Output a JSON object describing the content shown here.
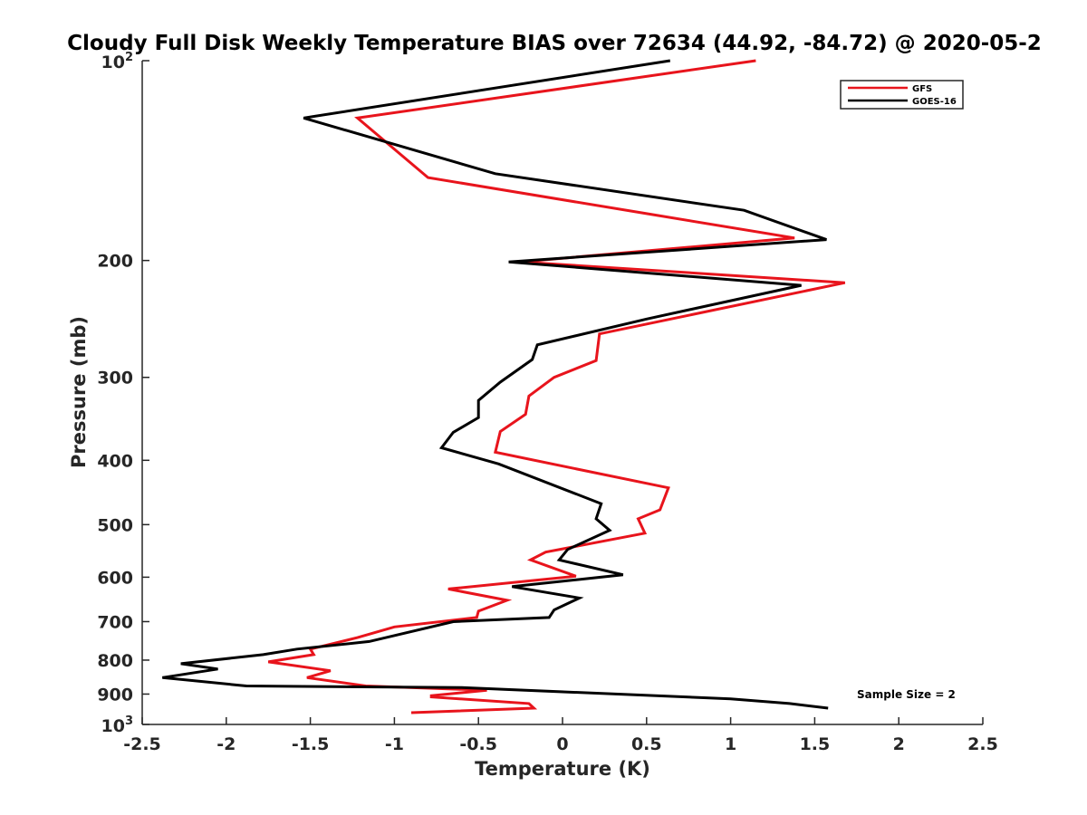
{
  "chart_data": {
    "type": "line",
    "title": "Cloudy Full Disk Weekly Temperature BIAS over 72634 (44.92, -84.72) @ 2020-05-2",
    "xlabel": "Temperature (K)",
    "ylabel": "Pressure (mb)",
    "xlim": [
      -2.5,
      2.5
    ],
    "ylim": [
      100,
      1000
    ],
    "y_scale": "log",
    "y_reversed": true,
    "grid": false,
    "legend_position": "top-right",
    "x_ticks": [
      -2.5,
      -2,
      -1.5,
      -1,
      -0.5,
      0,
      0.5,
      1,
      1.5,
      2,
      2.5
    ],
    "x_tick_labels": [
      "-2.5",
      "-2",
      "-1.5",
      "-1",
      "-0.5",
      "0",
      "0.5",
      "1",
      "1.5",
      "2",
      "2.5"
    ],
    "y_ticks": [
      100,
      200,
      300,
      400,
      500,
      600,
      700,
      800,
      900,
      1000
    ],
    "y_tick_labels": [
      "",
      "200",
      "300",
      "400",
      "500",
      "600",
      "700",
      "800",
      "900",
      ""
    ],
    "y_tick_powers": [
      {
        "value": 100,
        "base": "10",
        "exp": "2"
      },
      {
        "value": 1000,
        "base": "10",
        "exp": "3"
      }
    ],
    "annotation": "Sample Size = 2",
    "series": [
      {
        "name": "GFS",
        "color": "#e8141c",
        "x": [
          1.15,
          -1.22,
          -0.8,
          0.5,
          1.38,
          -0.25,
          1.68,
          0.22,
          0.2,
          -0.05,
          -0.2,
          -0.22,
          -0.37,
          -0.4,
          0.63,
          0.58,
          0.45,
          0.49,
          -0.1,
          -0.19,
          0.08,
          -0.68,
          -0.33,
          -0.5,
          -0.51,
          -1.0,
          -1.22,
          -1.5,
          -1.48,
          -1.75,
          -1.38,
          -1.52,
          -1.17,
          -0.45,
          -0.78,
          -0.78,
          -0.2,
          -0.17,
          -0.9
        ],
        "y": [
          100,
          122,
          150,
          170,
          185,
          201,
          216,
          258,
          283,
          300,
          320,
          341,
          362,
          389,
          440,
          475,
          490,
          515,
          550,
          565,
          598,
          625,
          650,
          675,
          690,
          713,
          740,
          770,
          785,
          805,
          830,
          850,
          875,
          888,
          905,
          909,
          930,
          945,
          960
        ]
      },
      {
        "name": "GOES-16",
        "color": "#000000",
        "x": [
          0.64,
          -1.54,
          -0.4,
          1.08,
          1.57,
          -0.32,
          1.42,
          0.5,
          -0.15,
          -0.18,
          -0.37,
          -0.5,
          -0.5,
          -0.65,
          -0.72,
          -0.38,
          0.23,
          0.2,
          0.28,
          0.03,
          -0.02,
          0.36,
          -0.3,
          0.1,
          -0.05,
          -0.08,
          -0.65,
          -1.15,
          -1.58,
          -1.78,
          -2.27,
          -2.05,
          -2.38,
          -1.88,
          -0.6,
          1.0,
          1.35,
          1.58
        ],
        "y": [
          100,
          122,
          148,
          168,
          186,
          201,
          218,
          245,
          268,
          282,
          305,
          325,
          345,
          363,
          383,
          405,
          465,
          490,
          510,
          545,
          565,
          595,
          620,
          645,
          672,
          690,
          700,
          750,
          770,
          785,
          810,
          825,
          850,
          875,
          880,
          915,
          930,
          945
        ]
      }
    ]
  }
}
